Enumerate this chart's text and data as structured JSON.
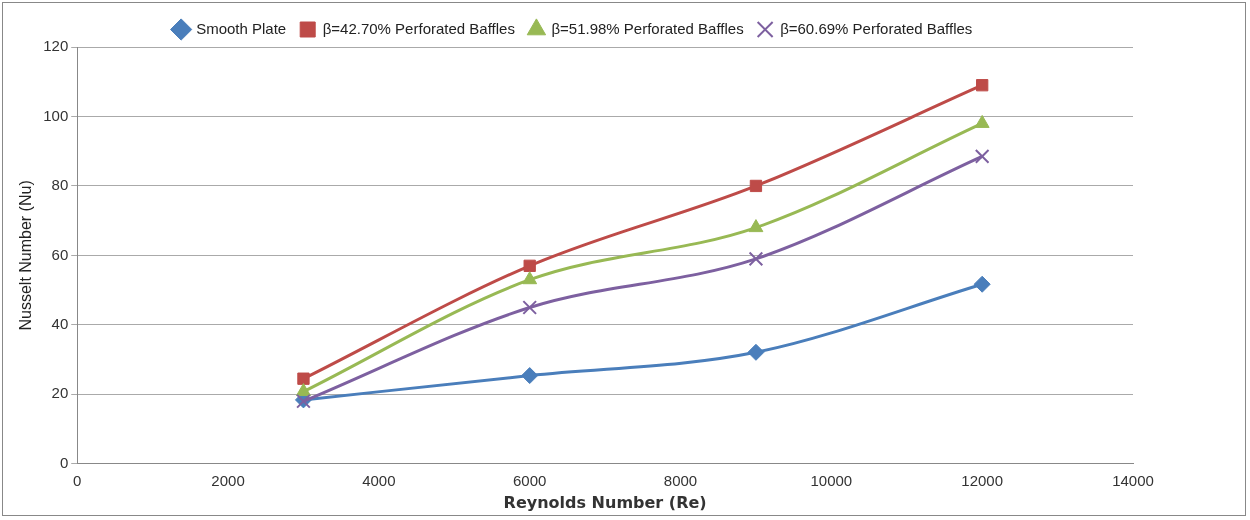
{
  "chart_data": {
    "type": "line",
    "xlabel": "Reynolds Number (Re)",
    "ylabel": "Nusselt Number (Nu)",
    "x": [
      3000,
      6000,
      9000,
      12000
    ],
    "xlim": [
      0,
      14000
    ],
    "xticks": [
      0,
      2000,
      4000,
      6000,
      8000,
      10000,
      12000,
      14000
    ],
    "ylim": [
      0,
      120
    ],
    "yticks": [
      0,
      20,
      40,
      60,
      80,
      100,
      120
    ],
    "grid": "y",
    "legend": "top",
    "series": [
      {
        "name": "Smooth Plate",
        "color": "#4a7ebb",
        "marker": "diamond",
        "values": [
          18.4,
          25.4,
          32.1,
          51.7
        ]
      },
      {
        "name": "β=42.70% Perforated Baffles",
        "color": "#be4b48",
        "marker": "square",
        "values": [
          24.5,
          57,
          80,
          109
        ]
      },
      {
        "name": "β=51.98% Perforated Baffles",
        "color": "#98b954",
        "marker": "triangle",
        "values": [
          20.8,
          53,
          68,
          98
        ]
      },
      {
        "name": "β=60.69% Perforated Baffles",
        "color": "#7d60a0",
        "marker": "cross",
        "values": [
          18,
          45,
          59,
          88.5
        ]
      }
    ]
  }
}
